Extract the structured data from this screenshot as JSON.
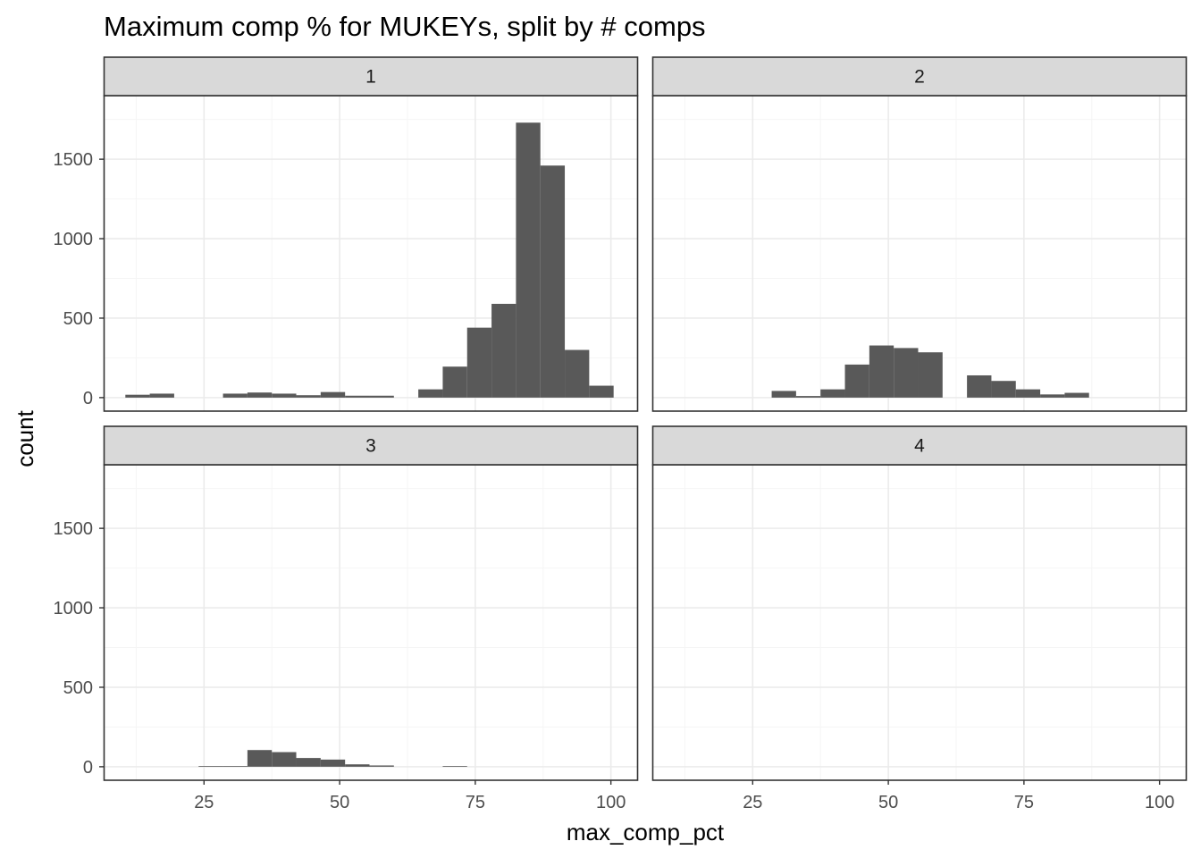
{
  "chart_data": {
    "type": "bar",
    "subtype": "faceted-histogram",
    "title": "Maximum comp % for MUKEYs, split by # comps",
    "xlabel": "max_comp_pct",
    "ylabel": "count",
    "xlim": [
      6.5,
      105
    ],
    "ylim": [
      -85,
      1900
    ],
    "x_ticks": [
      25,
      50,
      75,
      100
    ],
    "y_ticks": [
      0,
      500,
      1000,
      1500
    ],
    "bin_width": 4.5,
    "grid": true,
    "theme": "black-and-white",
    "colors": {
      "bar": "#595959",
      "strip_fill": "#d9d9d9",
      "grid_major": "#ebebeb",
      "grid_minor": "#f5f5f5",
      "border": "#333333"
    },
    "facets": [
      {
        "label": "1",
        "bins": [
          {
            "x0": 10.5,
            "x1": 15,
            "count": 18
          },
          {
            "x0": 15,
            "x1": 19.5,
            "count": 25
          },
          {
            "x0": 28.5,
            "x1": 33,
            "count": 25
          },
          {
            "x0": 33,
            "x1": 37.5,
            "count": 32
          },
          {
            "x0": 37.5,
            "x1": 42,
            "count": 25
          },
          {
            "x0": 42,
            "x1": 46.5,
            "count": 15
          },
          {
            "x0": 46.5,
            "x1": 51,
            "count": 35
          },
          {
            "x0": 51,
            "x1": 55.5,
            "count": 12
          },
          {
            "x0": 55.5,
            "x1": 60,
            "count": 12
          },
          {
            "x0": 64.5,
            "x1": 69,
            "count": 52
          },
          {
            "x0": 69,
            "x1": 73.5,
            "count": 195
          },
          {
            "x0": 73.5,
            "x1": 78,
            "count": 440
          },
          {
            "x0": 78,
            "x1": 82.5,
            "count": 590
          },
          {
            "x0": 82.5,
            "x1": 87,
            "count": 1730
          },
          {
            "x0": 87,
            "x1": 91.5,
            "count": 1460
          },
          {
            "x0": 91.5,
            "x1": 96,
            "count": 300
          },
          {
            "x0": 96,
            "x1": 100.5,
            "count": 75
          }
        ]
      },
      {
        "label": "2",
        "bins": [
          {
            "x0": 28.5,
            "x1": 33,
            "count": 42
          },
          {
            "x0": 33,
            "x1": 37.5,
            "count": 10
          },
          {
            "x0": 37.5,
            "x1": 42,
            "count": 52
          },
          {
            "x0": 42,
            "x1": 46.5,
            "count": 208
          },
          {
            "x0": 46.5,
            "x1": 51,
            "count": 328
          },
          {
            "x0": 51,
            "x1": 55.5,
            "count": 312
          },
          {
            "x0": 55.5,
            "x1": 60,
            "count": 285
          },
          {
            "x0": 64.5,
            "x1": 69,
            "count": 140
          },
          {
            "x0": 69,
            "x1": 73.5,
            "count": 105
          },
          {
            "x0": 73.5,
            "x1": 78,
            "count": 52
          },
          {
            "x0": 78,
            "x1": 82.5,
            "count": 20
          },
          {
            "x0": 82.5,
            "x1": 87,
            "count": 30
          }
        ]
      },
      {
        "label": "3",
        "bins": [
          {
            "x0": 24,
            "x1": 28.5,
            "count": 4
          },
          {
            "x0": 28.5,
            "x1": 33,
            "count": 4
          },
          {
            "x0": 33,
            "x1": 37.5,
            "count": 105
          },
          {
            "x0": 37.5,
            "x1": 42,
            "count": 92
          },
          {
            "x0": 42,
            "x1": 46.5,
            "count": 55
          },
          {
            "x0": 46.5,
            "x1": 51,
            "count": 45
          },
          {
            "x0": 51,
            "x1": 55.5,
            "count": 15
          },
          {
            "x0": 55.5,
            "x1": 60,
            "count": 8
          },
          {
            "x0": 69,
            "x1": 73.5,
            "count": 4
          }
        ]
      },
      {
        "label": "4",
        "bins": []
      }
    ]
  }
}
